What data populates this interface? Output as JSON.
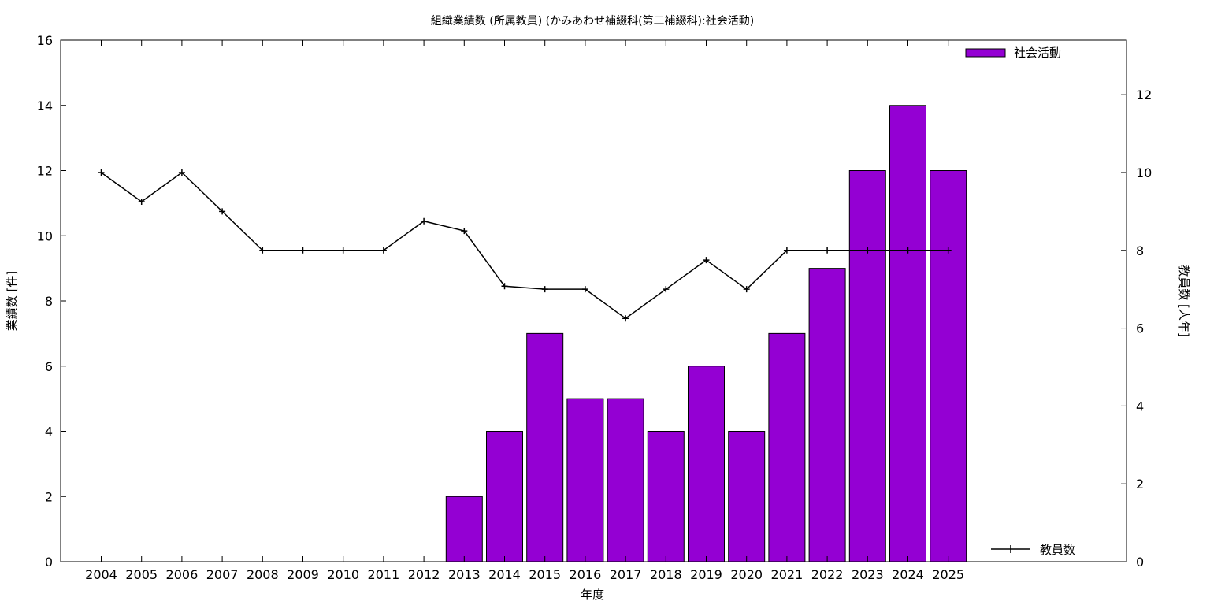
{
  "chart_data": {
    "type": "bar",
    "title": "組織業績数 (所属教員) (かみあわせ補綴科(第二補綴科):社会活動)",
    "xlabel": "年度",
    "ylabel": "業績数 [件]",
    "y2label": "教員数 [人年]",
    "categories": [
      "2004",
      "2005",
      "2006",
      "2007",
      "2008",
      "2009",
      "2010",
      "2011",
      "2012",
      "2013",
      "2014",
      "2015",
      "2016",
      "2017",
      "2018",
      "2019",
      "2020",
      "2021",
      "2022",
      "2023",
      "2024",
      "2025"
    ],
    "ylim": [
      0,
      16
    ],
    "y_ticks": [
      0,
      2,
      4,
      6,
      8,
      10,
      12,
      14,
      16
    ],
    "y2lim": [
      0,
      13.4
    ],
    "y2_ticks": [
      0,
      2,
      4,
      6,
      8,
      10,
      12
    ],
    "grid": false,
    "series": [
      {
        "name": "社会活動",
        "type": "bar",
        "axis": "left",
        "color": "#9400d3",
        "values": [
          0,
          0,
          0,
          0,
          0,
          0,
          0,
          0,
          0,
          2,
          4,
          7,
          5,
          5,
          4,
          6,
          4,
          7,
          9,
          12,
          14,
          12
        ]
      },
      {
        "name": "教員数",
        "type": "line",
        "axis": "right",
        "color": "#000000",
        "marker": "plus",
        "values": [
          10,
          9.25,
          10,
          9,
          8,
          8,
          8,
          8,
          8.75,
          8.5,
          7.08,
          7,
          7,
          6.25,
          7,
          7.75,
          7,
          8,
          8,
          8,
          8,
          8
        ]
      }
    ],
    "legend": [
      {
        "label": "社会活動",
        "position": "top-right"
      },
      {
        "label": "教員数",
        "position": "bottom-right"
      }
    ]
  }
}
